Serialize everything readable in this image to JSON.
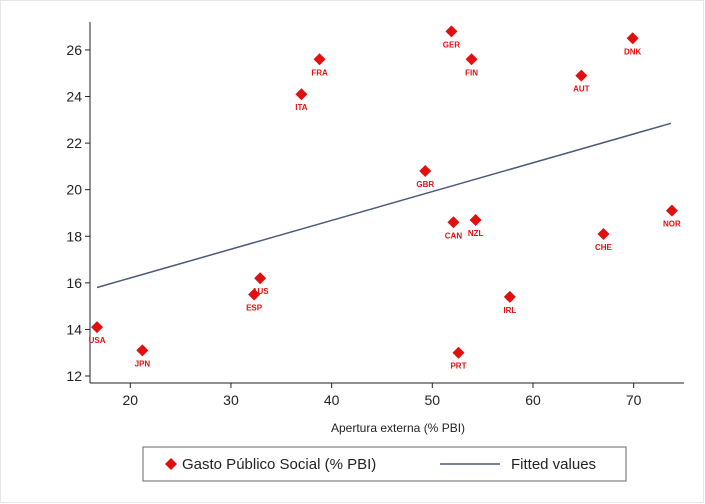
{
  "chart_data": {
    "type": "scatter",
    "title": "",
    "xlabel": "Apertura externa (% PBI)",
    "ylabel": "",
    "xlim": [
      16,
      75
    ],
    "ylim": [
      11.7,
      27.2
    ],
    "xticks": [
      20,
      30,
      40,
      50,
      60,
      70
    ],
    "yticks": [
      12,
      14,
      16,
      18,
      20,
      22,
      24,
      26
    ],
    "grid": false,
    "legend_position": "bottom",
    "series": [
      {
        "name": "Gasto Público Social (% PBI)",
        "kind": "scatter",
        "color": "#e01010",
        "marker": "diamond",
        "points": [
          {
            "label": "USA",
            "x": 16.7,
            "y": 14.1
          },
          {
            "label": "JPN",
            "x": 21.2,
            "y": 13.1
          },
          {
            "label": "ESP",
            "x": 32.3,
            "y": 15.5
          },
          {
            "label": "AUS",
            "x": 32.9,
            "y": 16.2
          },
          {
            "label": "ITA",
            "x": 37.0,
            "y": 24.1
          },
          {
            "label": "FRA",
            "x": 38.8,
            "y": 25.6
          },
          {
            "label": "GBR",
            "x": 49.3,
            "y": 20.8
          },
          {
            "label": "GER",
            "x": 51.9,
            "y": 26.8
          },
          {
            "label": "CAN",
            "x": 52.1,
            "y": 18.6
          },
          {
            "label": "PRT",
            "x": 52.6,
            "y": 13.0
          },
          {
            "label": "FIN",
            "x": 53.9,
            "y": 25.6
          },
          {
            "label": "NZL",
            "x": 54.3,
            "y": 18.7
          },
          {
            "label": "IRL",
            "x": 57.7,
            "y": 15.4
          },
          {
            "label": "AUT",
            "x": 64.8,
            "y": 24.9
          },
          {
            "label": "CHE",
            "x": 67.0,
            "y": 18.1
          },
          {
            "label": "DNK",
            "x": 69.9,
            "y": 26.5
          },
          {
            "label": "NOR",
            "x": 73.8,
            "y": 19.1
          }
        ]
      },
      {
        "name": "Fitted values",
        "kind": "line",
        "color": "#4a5a7a",
        "x": [
          16.7,
          73.7
        ],
        "y": [
          15.8,
          22.85
        ]
      }
    ]
  }
}
